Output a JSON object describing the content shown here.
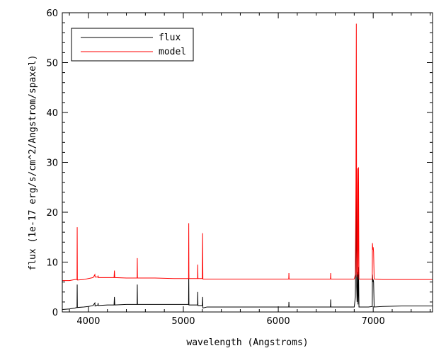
{
  "chart_data": {
    "type": "line",
    "title": "",
    "xlabel": "wavelength (Angstroms)",
    "ylabel": "flux (1e-17 erg/s/cm^2/Angstrom/spaxel)",
    "xlim": [
      3725,
      7625
    ],
    "ylim": [
      0,
      60
    ],
    "xticks": [
      4000,
      5000,
      6000,
      7000
    ],
    "xtick_labels": [
      "4000",
      "5000",
      "6000",
      "7000"
    ],
    "yticks": [
      0,
      10,
      20,
      30,
      40,
      50,
      60
    ],
    "ytick_labels": [
      "0",
      "10",
      "20",
      "30",
      "40",
      "50",
      "60"
    ],
    "grid": false,
    "legend_position": "top-left",
    "series": [
      {
        "name": "flux",
        "color": "#000000",
        "points": [
          [
            3725,
            0.5
          ],
          [
            3800,
            0.6
          ],
          [
            3860,
            0.8
          ],
          [
            3880,
            0.9
          ],
          [
            3882,
            5.5
          ],
          [
            3884,
            0.9
          ],
          [
            3950,
            1.0
          ],
          [
            4000,
            1.1
          ],
          [
            4050,
            1.3
          ],
          [
            4068,
            1.8
          ],
          [
            4070,
            1.2
          ],
          [
            4100,
            1.4
          ],
          [
            4102,
            1.8
          ],
          [
            4104,
            1.3
          ],
          [
            4200,
            1.4
          ],
          [
            4270,
            1.4
          ],
          [
            4274,
            3.0
          ],
          [
            4278,
            1.4
          ],
          [
            4400,
            1.5
          ],
          [
            4513,
            1.5
          ],
          [
            4515,
            5.5
          ],
          [
            4517,
            1.5
          ],
          [
            4700,
            1.5
          ],
          [
            4900,
            1.5
          ],
          [
            5055,
            1.5
          ],
          [
            5057,
            7.5
          ],
          [
            5059,
            1.4
          ],
          [
            5150,
            1.4
          ],
          [
            5152,
            4.0
          ],
          [
            5154,
            1.3
          ],
          [
            5200,
            1.3
          ],
          [
            5203,
            3.0
          ],
          [
            5206,
            0.8
          ],
          [
            5250,
            1.0
          ],
          [
            5500,
            1.0
          ],
          [
            5800,
            1.0
          ],
          [
            6110,
            1.0
          ],
          [
            6112,
            2.0
          ],
          [
            6114,
            1.0
          ],
          [
            6400,
            1.0
          ],
          [
            6550,
            1.0
          ],
          [
            6552,
            2.5
          ],
          [
            6554,
            1.0
          ],
          [
            6700,
            1.0
          ],
          [
            6800,
            1.0
          ],
          [
            6812,
            3.0
          ],
          [
            6818,
            14.0
          ],
          [
            6822,
            26.0
          ],
          [
            6826,
            5.0
          ],
          [
            6830,
            2.0
          ],
          [
            6836,
            8.0
          ],
          [
            6840,
            1.5
          ],
          [
            6845,
            9.0
          ],
          [
            6850,
            1.0
          ],
          [
            6950,
            1.0
          ],
          [
            6990,
            1.1
          ],
          [
            6992,
            7.5
          ],
          [
            6996,
            6.0
          ],
          [
            7000,
            6.5
          ],
          [
            7004,
            6.0
          ],
          [
            7010,
            1.0
          ],
          [
            7100,
            1.1
          ],
          [
            7300,
            1.2
          ],
          [
            7500,
            1.2
          ],
          [
            7625,
            1.2
          ]
        ]
      },
      {
        "name": "model",
        "color": "#ff0000",
        "points": [
          [
            3725,
            6.3
          ],
          [
            3800,
            6.3
          ],
          [
            3860,
            6.5
          ],
          [
            3880,
            6.5
          ],
          [
            3882,
            17.0
          ],
          [
            3884,
            6.4
          ],
          [
            3950,
            6.5
          ],
          [
            4000,
            6.7
          ],
          [
            4050,
            6.9
          ],
          [
            4068,
            7.5
          ],
          [
            4070,
            7.0
          ],
          [
            4100,
            7.0
          ],
          [
            4102,
            7.3
          ],
          [
            4104,
            6.9
          ],
          [
            4200,
            6.9
          ],
          [
            4270,
            6.9
          ],
          [
            4274,
            8.3
          ],
          [
            4278,
            6.9
          ],
          [
            4400,
            6.8
          ],
          [
            4513,
            6.8
          ],
          [
            4515,
            10.8
          ],
          [
            4517,
            6.8
          ],
          [
            4700,
            6.8
          ],
          [
            4900,
            6.7
          ],
          [
            5055,
            6.7
          ],
          [
            5057,
            17.8
          ],
          [
            5059,
            6.7
          ],
          [
            5150,
            6.7
          ],
          [
            5152,
            9.5
          ],
          [
            5154,
            6.7
          ],
          [
            5200,
            6.7
          ],
          [
            5203,
            15.8
          ],
          [
            5206,
            6.6
          ],
          [
            5250,
            6.6
          ],
          [
            5500,
            6.6
          ],
          [
            5800,
            6.6
          ],
          [
            6110,
            6.6
          ],
          [
            6112,
            7.8
          ],
          [
            6114,
            6.6
          ],
          [
            6400,
            6.6
          ],
          [
            6550,
            6.6
          ],
          [
            6552,
            7.8
          ],
          [
            6554,
            6.6
          ],
          [
            6700,
            6.6
          ],
          [
            6800,
            6.6
          ],
          [
            6812,
            7.5
          ],
          [
            6818,
            26.0
          ],
          [
            6822,
            57.8
          ],
          [
            6826,
            8.0
          ],
          [
            6830,
            7.0
          ],
          [
            6836,
            28.8
          ],
          [
            6840,
            7.5
          ],
          [
            6845,
            29.0
          ],
          [
            6850,
            6.6
          ],
          [
            6950,
            6.6
          ],
          [
            6990,
            6.6
          ],
          [
            6992,
            13.8
          ],
          [
            6996,
            12.5
          ],
          [
            7000,
            13.0
          ],
          [
            7004,
            12.0
          ],
          [
            7010,
            6.6
          ],
          [
            7100,
            6.5
          ],
          [
            7300,
            6.5
          ],
          [
            7500,
            6.5
          ],
          [
            7625,
            6.5
          ]
        ]
      }
    ]
  }
}
